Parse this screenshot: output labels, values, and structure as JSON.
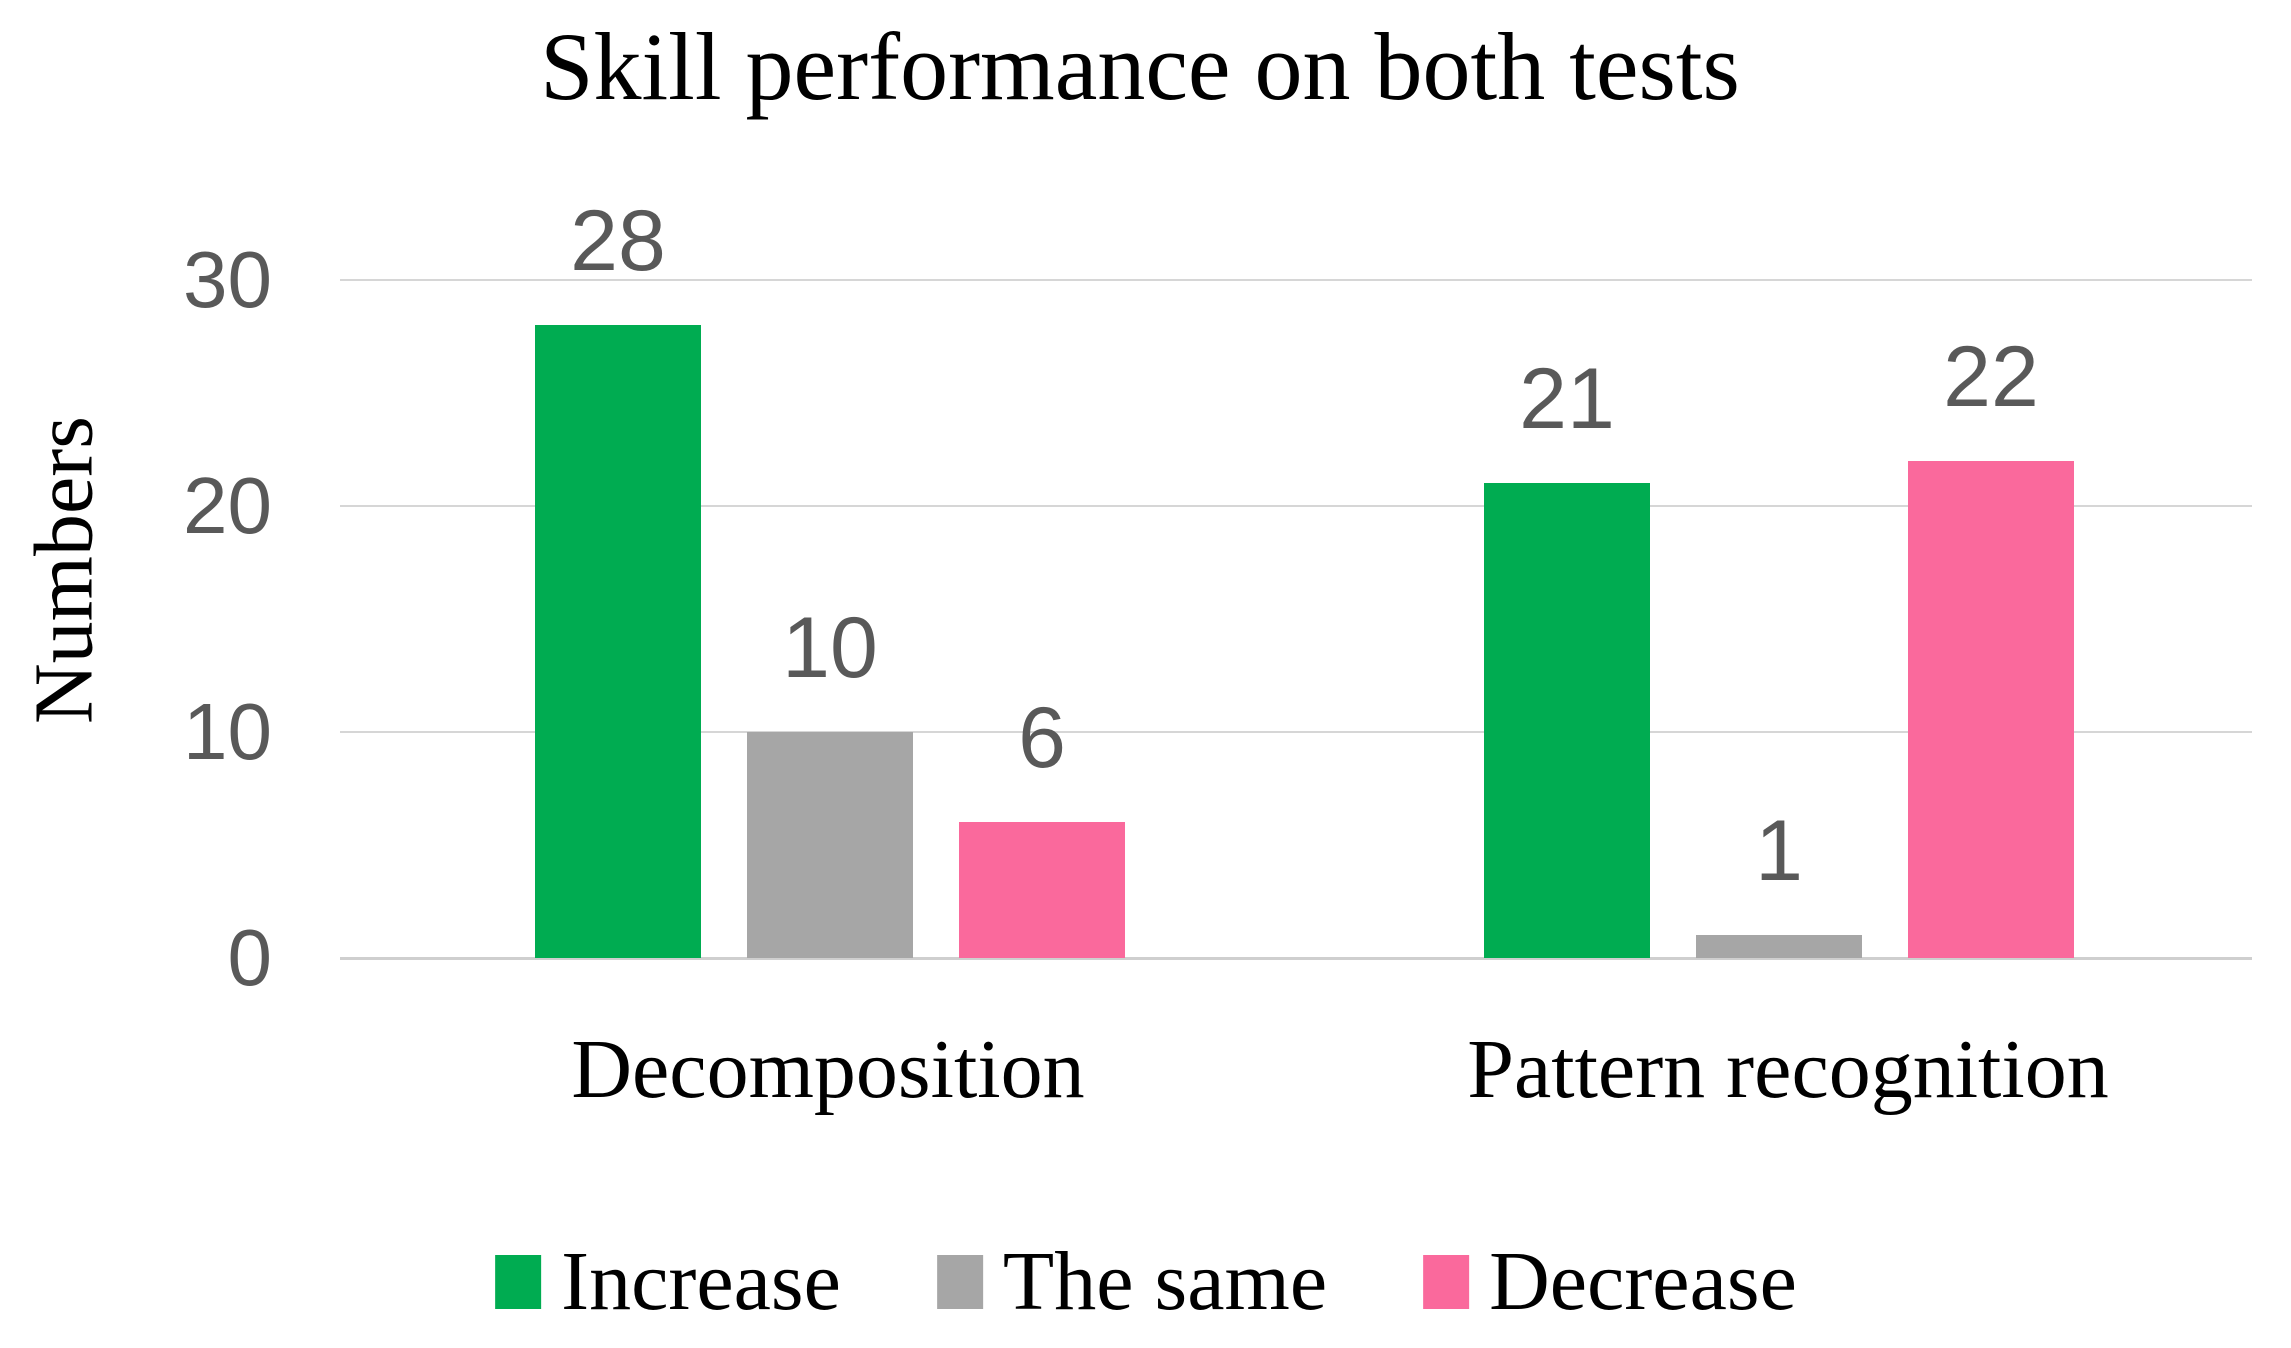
{
  "chart_data": {
    "type": "bar",
    "title": "Skill performance on both tests",
    "xlabel": "",
    "ylabel": "Numbers",
    "categories": [
      "Decomposition",
      "Pattern recognition"
    ],
    "series": [
      {
        "name": "Increase",
        "color": "#00AC51",
        "values": [
          28,
          21
        ]
      },
      {
        "name": "The same",
        "color": "#A6A6A6",
        "values": [
          10,
          1
        ]
      },
      {
        "name": "Decrease",
        "color": "#FA699C",
        "values": [
          6,
          22
        ]
      }
    ],
    "yticks": [
      0,
      10,
      20,
      30
    ],
    "ylim": [
      0,
      30
    ],
    "grid": true,
    "value_labels": true,
    "legend_position": "bottom"
  },
  "colors": {
    "number_text": "#595959",
    "label_text": "#000000",
    "gridline": "#D6D6D6",
    "axis_line": "#CFCFCF",
    "background": "#FFFFFF"
  }
}
